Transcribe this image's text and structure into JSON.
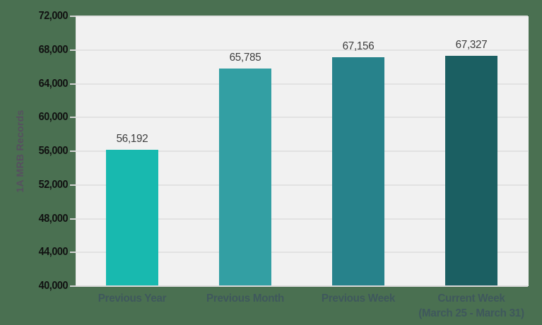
{
  "chart_data": {
    "type": "bar",
    "title": "",
    "xlabel": "",
    "ylabel": "1A MRB Records",
    "categories": [
      {
        "lines": [
          "Previous Year"
        ]
      },
      {
        "lines": [
          "Previous Month"
        ]
      },
      {
        "lines": [
          "Previous Week"
        ]
      },
      {
        "lines": [
          "Current Week",
          "(March 25 - March 31)"
        ]
      }
    ],
    "values": [
      56192,
      65785,
      67156,
      67327
    ],
    "value_labels": [
      "56,192",
      "65,785",
      "67,156",
      "67,327"
    ],
    "bar_colors": [
      "#18b9af",
      "#339fa3",
      "#27828b",
      "#1b5f62"
    ],
    "ylim": [
      40000,
      72000
    ],
    "ytick_step": 4000,
    "ytick_labels": [
      "40,000",
      "44,000",
      "48,000",
      "52,000",
      "56,000",
      "60,000",
      "64,000",
      "68,000",
      "72,000"
    ],
    "grid": true,
    "legend": "none"
  },
  "colors": {
    "background": "#4a7051",
    "plot_background": "#f1f1f1",
    "gridline": "#e2e2e2",
    "axis_line": "#d9d9d9",
    "tick": "#d2d2d2",
    "ytick_label": "#111111",
    "value_label": "#3d3d3d",
    "xcat_label": "#3f585c",
    "y_axis_title": "#56505f"
  }
}
